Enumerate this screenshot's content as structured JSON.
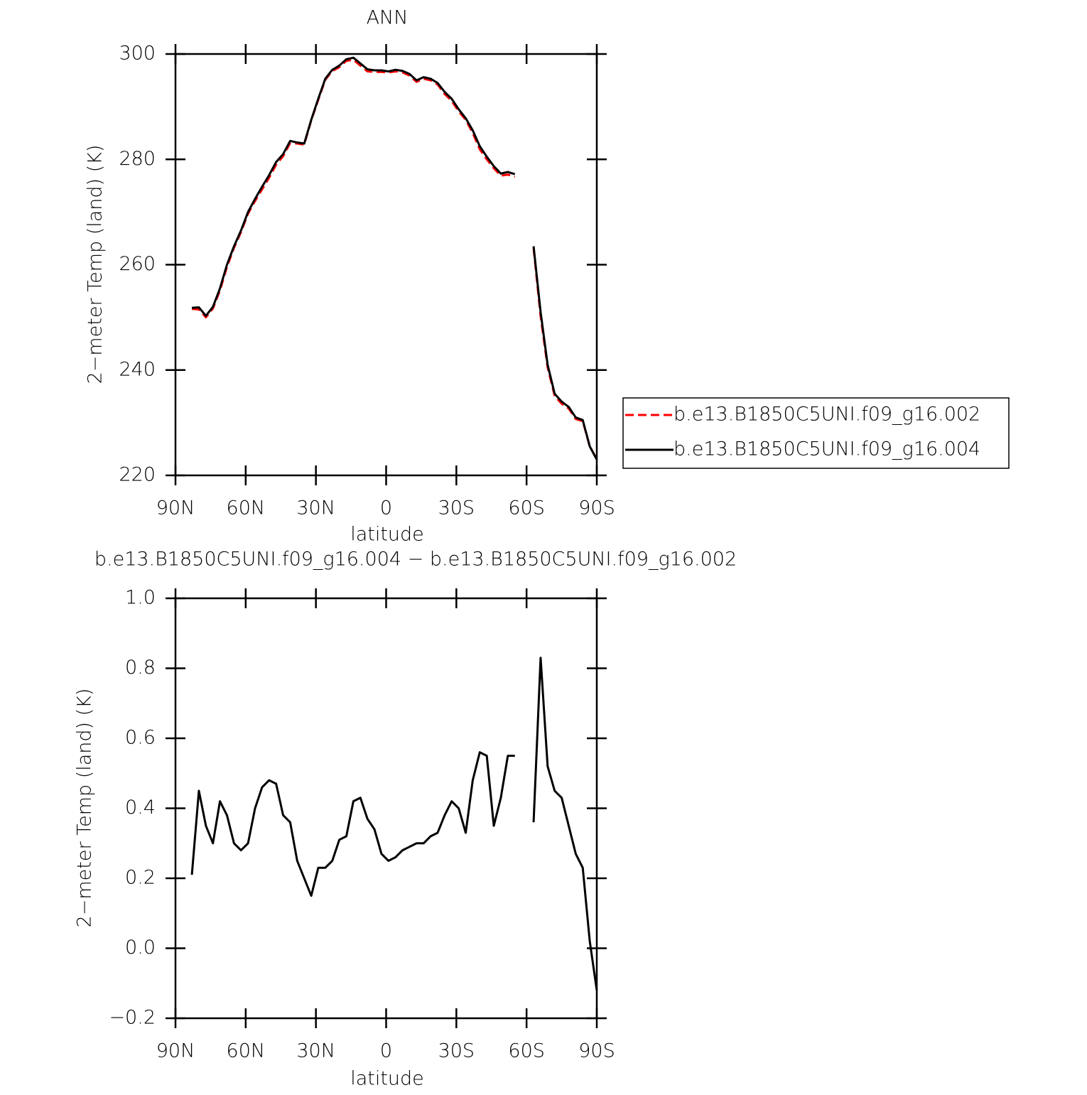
{
  "chart_data": [
    {
      "type": "line",
      "title": "ANN",
      "xlabel": "latitude",
      "ylabel": "2−meter Temp (land) (K)",
      "xlim": [
        90,
        -90
      ],
      "xticks": [
        {
          "value": 90,
          "label": "90N"
        },
        {
          "value": 60,
          "label": "60N"
        },
        {
          "value": 30,
          "label": "30N"
        },
        0,
        {
          "value": -30,
          "label": "30S"
        },
        {
          "value": -60,
          "label": "60S"
        },
        {
          "value": -90,
          "label": "90S"
        }
      ],
      "ylim": [
        220,
        300
      ],
      "yticks": [
        220,
        240,
        260,
        280,
        300
      ],
      "legend": "right",
      "x": [
        83,
        80,
        77,
        74,
        71,
        68,
        65,
        62,
        59,
        56,
        53,
        50,
        47,
        44,
        41,
        38,
        35,
        32,
        29,
        26,
        23,
        20,
        17,
        14,
        11,
        8,
        5,
        2,
        -1,
        -4,
        -7,
        -10,
        -13,
        -16,
        -19,
        -22,
        -25,
        -28,
        -31,
        -34,
        -37,
        -40,
        -43,
        -46,
        -49,
        -52,
        -55,
        -59,
        -63,
        -66,
        -69,
        -72,
        -75,
        -78,
        -81,
        -84,
        -87,
        -90
      ],
      "series": [
        {
          "name": "b.e13.B1850C5UNI.f09_g16.002",
          "color": "#ff0000",
          "linestyle": "dashed",
          "values": [
            251.6,
            251.5,
            250.0,
            251.7,
            255.1,
            259.6,
            263.2,
            266.2,
            269.7,
            272.1,
            274.3,
            276.5,
            279.0,
            280.6,
            283.1,
            283.0,
            282.8,
            287.4,
            291.3,
            295.1,
            296.8,
            297.5,
            298.7,
            298.9,
            297.8,
            296.7,
            296.6,
            296.6,
            296.5,
            296.7,
            296.5,
            295.9,
            294.7,
            295.3,
            295.0,
            294.2,
            292.4,
            291.1,
            289.1,
            287.5,
            285.0,
            281.9,
            280.0,
            278.3,
            276.9,
            277.1,
            276.7,
            null,
            263.1,
            250.2,
            240.5,
            235.1,
            233.6,
            232.7,
            230.7,
            230.3,
            225.5,
            223.1
          ]
        },
        {
          "name": "b.e13.B1850C5UNI.f09_g16.004",
          "color": "#000000",
          "linestyle": "solid",
          "values": [
            251.8,
            251.9,
            250.3,
            252.0,
            255.5,
            260.0,
            263.5,
            266.5,
            270.0,
            272.5,
            274.8,
            277.0,
            279.5,
            281.0,
            283.5,
            283.2,
            283.0,
            287.5,
            291.5,
            295.3,
            297.0,
            297.8,
            299.0,
            299.3,
            298.2,
            297.1,
            296.9,
            296.9,
            296.7,
            297.0,
            296.8,
            296.2,
            295.0,
            295.6,
            295.3,
            294.5,
            292.8,
            291.5,
            289.5,
            287.8,
            285.5,
            282.5,
            280.5,
            278.7,
            277.3,
            277.6,
            277.2,
            null,
            263.5,
            251.0,
            241.0,
            235.5,
            234.0,
            233.0,
            231.0,
            230.5,
            225.5,
            223.0
          ]
        }
      ]
    },
    {
      "type": "line",
      "title": "b.e13.B1850C5UNI.f09_g16.004 − b.e13.B1850C5UNI.f09_g16.002",
      "xlabel": "latitude",
      "ylabel": "2−meter Temp (land) (K)",
      "xlim": [
        90,
        -90
      ],
      "xticks": [
        {
          "value": 90,
          "label": "90N"
        },
        {
          "value": 60,
          "label": "60N"
        },
        {
          "value": 30,
          "label": "30N"
        },
        0,
        {
          "value": -30,
          "label": "30S"
        },
        {
          "value": -60,
          "label": "60S"
        },
        {
          "value": -90,
          "label": "90S"
        }
      ],
      "ylim": [
        -0.2,
        1.0
      ],
      "yticks": [
        {
          "value": -0.2,
          "label": "−0.2"
        },
        {
          "value": 0,
          "label": "0.0"
        },
        0.2,
        0.4,
        0.6,
        0.8,
        {
          "value": 1,
          "label": "1.0"
        }
      ],
      "x": [
        83,
        80,
        77,
        74,
        71,
        68,
        65,
        62,
        59,
        56,
        53,
        50,
        47,
        44,
        41,
        38,
        35,
        32,
        29,
        26,
        23,
        20,
        17,
        14,
        11,
        8,
        5,
        2,
        -1,
        -4,
        -7,
        -10,
        -13,
        -16,
        -19,
        -22,
        -25,
        -28,
        -31,
        -34,
        -37,
        -40,
        -43,
        -46,
        -49,
        -52,
        -55,
        -59,
        -63,
        -66,
        -69,
        -72,
        -75,
        -78,
        -81,
        -84,
        -87,
        -90
      ],
      "series": [
        {
          "color": "#000000",
          "linestyle": "solid",
          "values": [
            0.21,
            0.45,
            0.35,
            0.3,
            0.42,
            0.38,
            0.3,
            0.28,
            0.3,
            0.4,
            0.46,
            0.48,
            0.47,
            0.38,
            0.36,
            0.25,
            0.2,
            0.15,
            0.23,
            0.23,
            0.25,
            0.31,
            0.32,
            0.42,
            0.43,
            0.37,
            0.34,
            0.27,
            0.25,
            0.26,
            0.28,
            0.29,
            0.3,
            0.3,
            0.32,
            0.33,
            0.38,
            0.42,
            0.4,
            0.33,
            0.48,
            0.56,
            0.55,
            0.35,
            0.43,
            0.55,
            0.55,
            null,
            0.36,
            0.83,
            0.52,
            0.45,
            0.43,
            0.35,
            0.27,
            0.23,
            0.02,
            -0.12
          ]
        }
      ]
    }
  ]
}
